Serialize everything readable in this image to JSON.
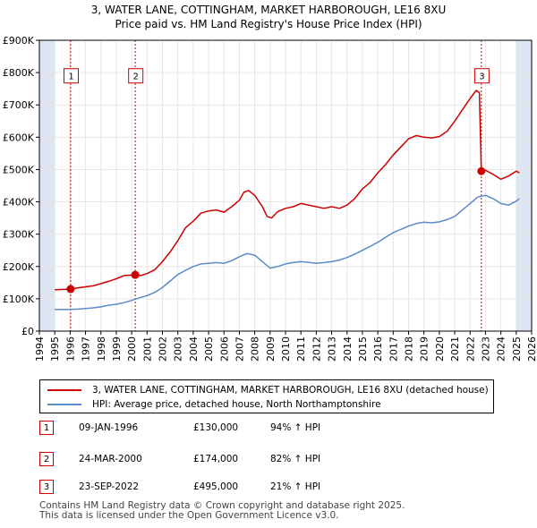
{
  "title": {
    "line1": "3, WATER LANE, COTTINGHAM, MARKET HARBOROUGH, LE16 8XU",
    "line2": "Price paid vs. HM Land Registry's House Price Index (HPI)"
  },
  "colors": {
    "property": "#cc0000",
    "hpi": "#5b8ac9",
    "shade": "#dde5f3",
    "grid": "#e6e6e6",
    "badge_border": "#cc0000"
  },
  "chart_data": {
    "type": "line",
    "title": "3, WATER LANE, COTTINGHAM, MARKET HARBOROUGH, LE16 8XU — Price paid vs. HM Land Registry's House Price Index (HPI)",
    "xlabel": "",
    "ylabel": "",
    "xlim": [
      1994,
      2026
    ],
    "ylim": [
      0,
      900000
    ],
    "y_ticks": [
      {
        "value": 0,
        "label": "£0"
      },
      {
        "value": 100000,
        "label": "£100K"
      },
      {
        "value": 200000,
        "label": "£200K"
      },
      {
        "value": 300000,
        "label": "£300K"
      },
      {
        "value": 400000,
        "label": "£400K"
      },
      {
        "value": 500000,
        "label": "£500K"
      },
      {
        "value": 600000,
        "label": "£600K"
      },
      {
        "value": 700000,
        "label": "£700K"
      },
      {
        "value": 800000,
        "label": "£800K"
      },
      {
        "value": 900000,
        "label": "£900K"
      }
    ],
    "x_ticks": [
      "1994",
      "1995",
      "1996",
      "1997",
      "1998",
      "1999",
      "2000",
      "2001",
      "2002",
      "2003",
      "2004",
      "2005",
      "2006",
      "2007",
      "2008",
      "2009",
      "2010",
      "2011",
      "2012",
      "2013",
      "2014",
      "2015",
      "2016",
      "2017",
      "2018",
      "2019",
      "2020",
      "2021",
      "2022",
      "2023",
      "2024",
      "2025",
      "2026"
    ],
    "grid": true,
    "shaded_ranges": [
      [
        1994,
        1995
      ],
      [
        2025,
        2026
      ]
    ],
    "series": [
      {
        "name": "3, WATER LANE, COTTINGHAM, MARKET HARBOROUGH, LE16 8XU (detached house)",
        "color_key": "property",
        "x": [
          1995,
          1996.03,
          1996.5,
          1997,
          1997.5,
          1998,
          1998.5,
          1999,
          1999.5,
          2000.23,
          2000.6,
          2001,
          2001.5,
          2002,
          2002.5,
          2003,
          2003.5,
          2004,
          2004.5,
          2005,
          2005.5,
          2006,
          2006.5,
          2007,
          2007.3,
          2007.6,
          2008,
          2008.5,
          2008.8,
          2009.1,
          2009.5,
          2010,
          2010.5,
          2011,
          2011.5,
          2012,
          2012.5,
          2013,
          2013.5,
          2014,
          2014.5,
          2015,
          2015.5,
          2016,
          2016.5,
          2017,
          2017.5,
          2018,
          2018.5,
          2019,
          2019.5,
          2020,
          2020.5,
          2021,
          2021.5,
          2022,
          2022.4,
          2022.6,
          2022.73,
          2023,
          2023.5,
          2024,
          2024.5,
          2025,
          2025.2
        ],
        "y": [
          128000,
          130000,
          134000,
          137000,
          140000,
          147000,
          154000,
          162000,
          172000,
          174000,
          172000,
          178000,
          190000,
          215000,
          245000,
          280000,
          320000,
          340000,
          365000,
          372000,
          375000,
          368000,
          385000,
          405000,
          430000,
          435000,
          420000,
          385000,
          355000,
          350000,
          370000,
          380000,
          385000,
          395000,
          390000,
          385000,
          380000,
          385000,
          380000,
          390000,
          410000,
          440000,
          460000,
          490000,
          515000,
          545000,
          570000,
          595000,
          605000,
          600000,
          598000,
          602000,
          618000,
          650000,
          685000,
          720000,
          745000,
          738000,
          495000,
          498000,
          485000,
          470000,
          480000,
          495000,
          490000
        ]
      },
      {
        "name": "HPI: Average price, detached house, North Northamptonshire",
        "color_key": "hpi",
        "x": [
          1995,
          1996,
          1996.5,
          1997,
          1997.5,
          1998,
          1998.5,
          1999,
          1999.5,
          2000,
          2000.5,
          2001,
          2001.5,
          2002,
          2002.5,
          2003,
          2003.5,
          2004,
          2004.5,
          2005,
          2005.5,
          2006,
          2006.5,
          2007,
          2007.5,
          2008,
          2008.5,
          2009,
          2009.5,
          2010,
          2010.5,
          2011,
          2011.5,
          2012,
          2012.5,
          2013,
          2013.5,
          2014,
          2014.5,
          2015,
          2015.5,
          2016,
          2016.5,
          2017,
          2017.5,
          2018,
          2018.5,
          2019,
          2019.5,
          2020,
          2020.5,
          2021,
          2021.5,
          2022,
          2022.5,
          2023,
          2023.5,
          2024,
          2024.5,
          2025,
          2025.2
        ],
        "y": [
          67000,
          67000,
          68000,
          70000,
          72000,
          75000,
          80000,
          83000,
          88000,
          95000,
          103000,
          110000,
          120000,
          135000,
          155000,
          175000,
          188000,
          200000,
          208000,
          210000,
          212000,
          210000,
          218000,
          230000,
          240000,
          235000,
          215000,
          195000,
          200000,
          208000,
          212000,
          215000,
          213000,
          210000,
          212000,
          215000,
          220000,
          228000,
          238000,
          250000,
          262000,
          275000,
          290000,
          305000,
          315000,
          325000,
          333000,
          337000,
          335000,
          338000,
          345000,
          355000,
          375000,
          395000,
          415000,
          420000,
          410000,
          395000,
          390000,
          402000,
          410000
        ]
      }
    ],
    "annotations": [
      {
        "label": "1",
        "x": 1996.03,
        "y": 130000,
        "box_x": 1995.6,
        "box_y": 790000
      },
      {
        "label": "2",
        "x": 2000.23,
        "y": 174000,
        "box_x": 1999.8,
        "box_y": 790000
      },
      {
        "label": "3",
        "x": 2022.73,
        "y": 495000,
        "box_x": 2022.3,
        "box_y": 790000
      }
    ]
  },
  "legend": {
    "property_label": "3, WATER LANE, COTTINGHAM, MARKET HARBOROUGH, LE16 8XU (detached house)",
    "hpi_label": "HPI: Average price, detached house, North Northamptonshire"
  },
  "sales": [
    {
      "num": "1",
      "date": "09-JAN-1996",
      "price": "£130,000",
      "hpi": "94% ↑ HPI"
    },
    {
      "num": "2",
      "date": "24-MAR-2000",
      "price": "£174,000",
      "hpi": "82% ↑ HPI"
    },
    {
      "num": "3",
      "date": "23-SEP-2022",
      "price": "£495,000",
      "hpi": "21% ↑ HPI"
    }
  ],
  "footer": {
    "line1": "Contains HM Land Registry data © Crown copyright and database right 2025.",
    "line2": "This data is licensed under the Open Government Licence v3.0."
  }
}
